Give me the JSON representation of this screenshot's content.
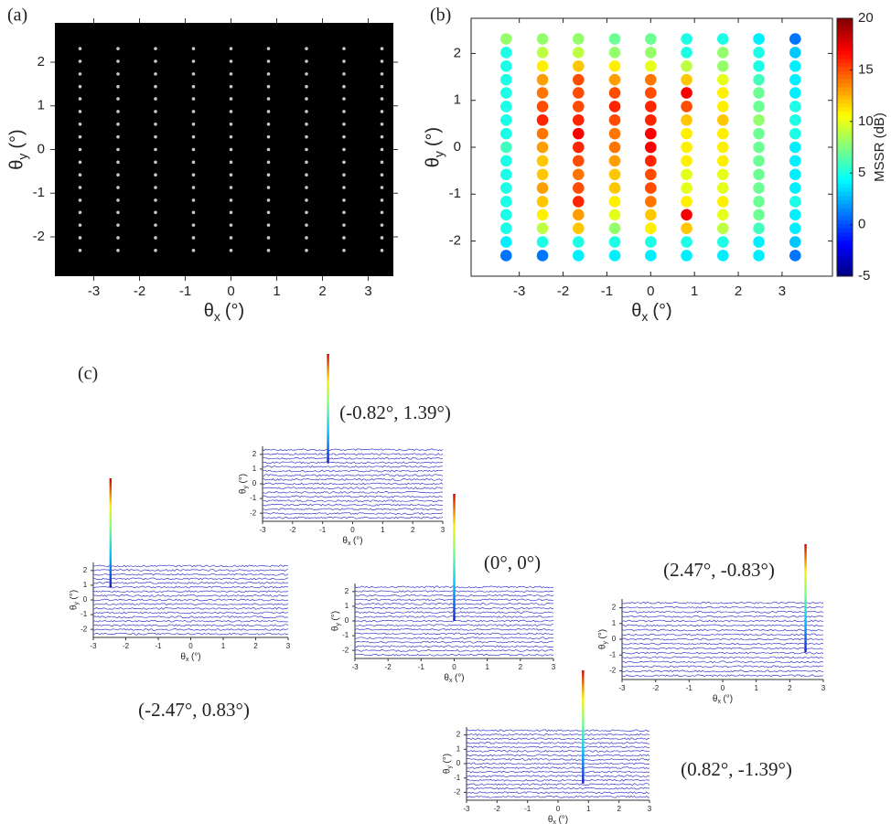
{
  "chart_data": [
    {
      "type": "spots",
      "panel": "(a)",
      "xlabel": [
        "θ",
        "x",
        "(°)"
      ],
      "ylabel": [
        "θ",
        "y",
        "(°)"
      ],
      "xlim": [
        -3.85,
        3.55
      ],
      "ylim": [
        -2.9,
        2.9
      ],
      "xticks": [
        -3,
        -2,
        -1,
        0,
        1,
        2,
        3
      ],
      "yticks": [
        -2,
        -1,
        0,
        1,
        2
      ]
    },
    {
      "type": "dotgrid",
      "panel": "(b)",
      "xlabel": [
        "θ",
        "x",
        "(°)"
      ],
      "ylabel": [
        "θ",
        "y",
        "(°)"
      ],
      "xlim": [
        -4.1,
        4.15
      ],
      "ylim": [
        -2.75,
        2.75
      ],
      "xticks": [
        -3,
        -2,
        -1,
        0,
        1,
        2,
        3
      ],
      "yticks": [
        -2,
        -1,
        0,
        1,
        2
      ],
      "x": [
        -3.3,
        -2.47,
        -1.65,
        -0.82,
        0,
        0.82,
        1.65,
        2.47,
        3.3
      ],
      "y": [
        2.31,
        2.02,
        1.73,
        1.44,
        1.16,
        0.87,
        0.58,
        0.29,
        0,
        -0.29,
        -0.58,
        -0.87,
        -1.16,
        -1.44,
        -1.73,
        -2.02,
        -2.31
      ],
      "values": [
        [
          8,
          5,
          5,
          5,
          5,
          5,
          5,
          5,
          6,
          5,
          5,
          5,
          5,
          5,
          5,
          4,
          1
        ],
        [
          8,
          9,
          11,
          13,
          14,
          15,
          16,
          14,
          13,
          12,
          12,
          13,
          12,
          11,
          9,
          5,
          1
        ],
        [
          8,
          9,
          12,
          15,
          15,
          15,
          16,
          17,
          16,
          15,
          14,
          15,
          16,
          13,
          12,
          5,
          4
        ],
        [
          7,
          8,
          11,
          13,
          15,
          16,
          15,
          14,
          14,
          13,
          12,
          12,
          11,
          10,
          8,
          5,
          4
        ],
        [
          7,
          8,
          10,
          14,
          15,
          16,
          16,
          17,
          17,
          16,
          15,
          15,
          14,
          12,
          11,
          5,
          4
        ],
        [
          5,
          5,
          9,
          12,
          17,
          15,
          12,
          11,
          11,
          11,
          10,
          10,
          11,
          17,
          12,
          5,
          4
        ],
        [
          5,
          8,
          8,
          10,
          11,
          11,
          12,
          11,
          11,
          11,
          10,
          10,
          11,
          10,
          9,
          5,
          4
        ],
        [
          4,
          5,
          5,
          6,
          7,
          7,
          8,
          7,
          7,
          7,
          7,
          7,
          7,
          7,
          6,
          4,
          4
        ],
        [
          1,
          3,
          4,
          4,
          4,
          5,
          5,
          5,
          4,
          4,
          4,
          4,
          5,
          4,
          4,
          3,
          1
        ]
      ],
      "colormap": "jet",
      "zlim": [
        -5,
        20
      ],
      "zticks": [
        -5,
        0,
        5,
        10,
        15,
        20
      ],
      "zlabel": "MSSR (dB)"
    },
    {
      "type": "waterfall",
      "panel": "(c)",
      "xlabel": [
        "θ",
        "x",
        "(°)"
      ],
      "ylabel": [
        "θ",
        "y",
        "(°)"
      ],
      "xlim": [
        -3,
        3
      ],
      "ylim": [
        -2.55,
        2.55
      ],
      "xticks": [
        -3,
        -2,
        -1,
        0,
        1,
        2,
        3
      ],
      "yticks": [
        -2,
        -1,
        0,
        1,
        2
      ],
      "plots": [
        {
          "peak": [
            -0.82,
            1.39
          ],
          "label": "(-0.82°, 1.39°)"
        },
        {
          "peak": [
            -2.47,
            0.83
          ],
          "label": "(-2.47°, 0.83°)"
        },
        {
          "peak": [
            0,
            0
          ],
          "label": "(0°, 0°)"
        },
        {
          "peak": [
            2.47,
            -0.83
          ],
          "label": "(2.47°, -0.83°)"
        },
        {
          "peak": [
            0.82,
            -1.39
          ],
          "label": "(0.82°, -1.39°)"
        }
      ]
    }
  ]
}
